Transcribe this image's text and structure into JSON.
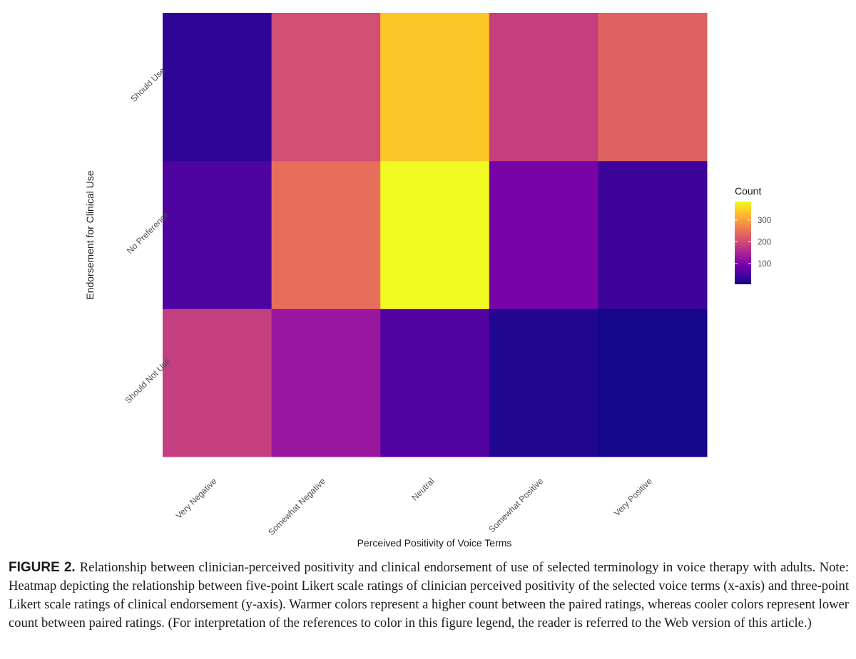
{
  "chart_data": {
    "type": "heatmap",
    "xlabel": "Perceived Positivity of Voice Terms",
    "ylabel": "Endorsement for Clinical Use",
    "x_categories": [
      "Very Negative",
      "Somewhat Negative",
      "Neutral",
      "Somewhat Positive",
      "Very Positive"
    ],
    "y_categories": [
      "Should Not Use",
      "No Preference",
      "Should Use"
    ],
    "values": [
      [
        185,
        130,
        60,
        20,
        10
      ],
      [
        55,
        245,
        385,
        95,
        40
      ],
      [
        30,
        205,
        340,
        185,
        230
      ]
    ],
    "legend": {
      "title": "Count",
      "ticks": [
        100,
        200,
        300
      ],
      "min": 5,
      "max": 385,
      "colors": [
        "#0d0887",
        "#46039f",
        "#7201a8",
        "#9c179e",
        "#bd3786",
        "#d8576b",
        "#ed7953",
        "#fb9f3a",
        "#fdca26",
        "#f0f921"
      ]
    }
  },
  "caption": {
    "label": "FIGURE 2.",
    "text": "Relationship between clinician-perceived positivity and clinical endorsement of use of selected terminology in voice therapy with adults. Note: Heatmap depicting the relationship between five-point Likert scale ratings of clinician perceived positivity of the selected voice terms (x-axis) and three-point Likert scale ratings of clinical endorsement (y-axis). Warmer colors represent a higher count between the paired ratings, whereas cooler colors represent lower count between paired ratings. (For interpretation of the references to color in this figure legend, the reader is referred to the Web version of this article.)"
  }
}
